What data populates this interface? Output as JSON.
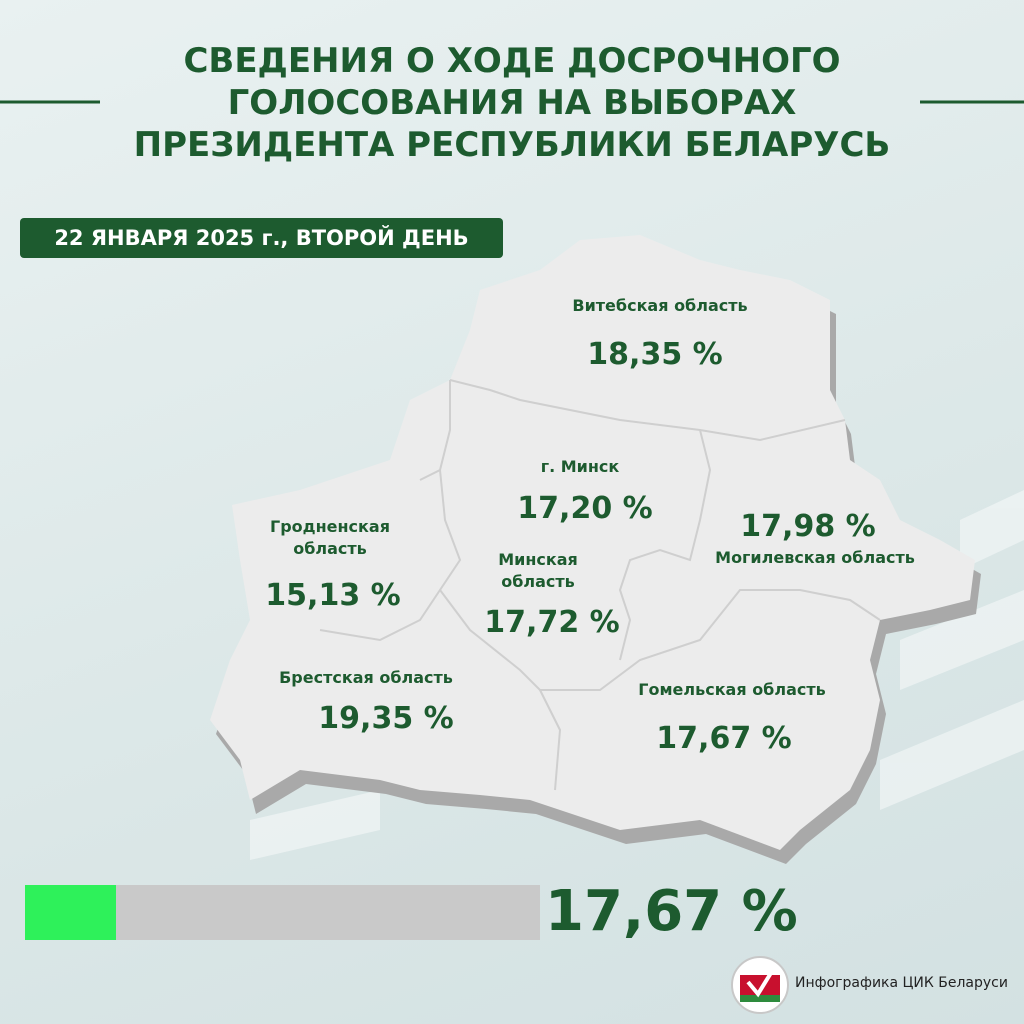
{
  "header": {
    "title_lines": [
      "СВЕДЕНИЯ О ХОДЕ ДОСРОЧНОГО",
      "ГОЛОСОВАНИЯ НА ВЫБОРАХ",
      "ПРЕЗИДЕНТА РЕСПУБЛИКИ БЕЛАРУСЬ"
    ],
    "date_badge": "22 ЯНВАРЯ 2025 г., ВТОРОЙ ДЕНЬ"
  },
  "regions": [
    {
      "name": "Витебская область",
      "label": "18,35 %"
    },
    {
      "name": "г. Минск",
      "label": "17,20 %"
    },
    {
      "name": "Могилевская область",
      "label": "17,98 %"
    },
    {
      "name": "Гродненская область",
      "label": "15,13 %"
    },
    {
      "name": "Минская область",
      "label": "17,72 %"
    },
    {
      "name": "Брестская область",
      "label": "19,35 %"
    },
    {
      "name": "Гомельская область",
      "label": "17,67 %"
    }
  ],
  "total": {
    "value": 17.67,
    "label": "17,67 %"
  },
  "footer": {
    "credit": "Инфографика ЦИК Беларуси"
  }
}
